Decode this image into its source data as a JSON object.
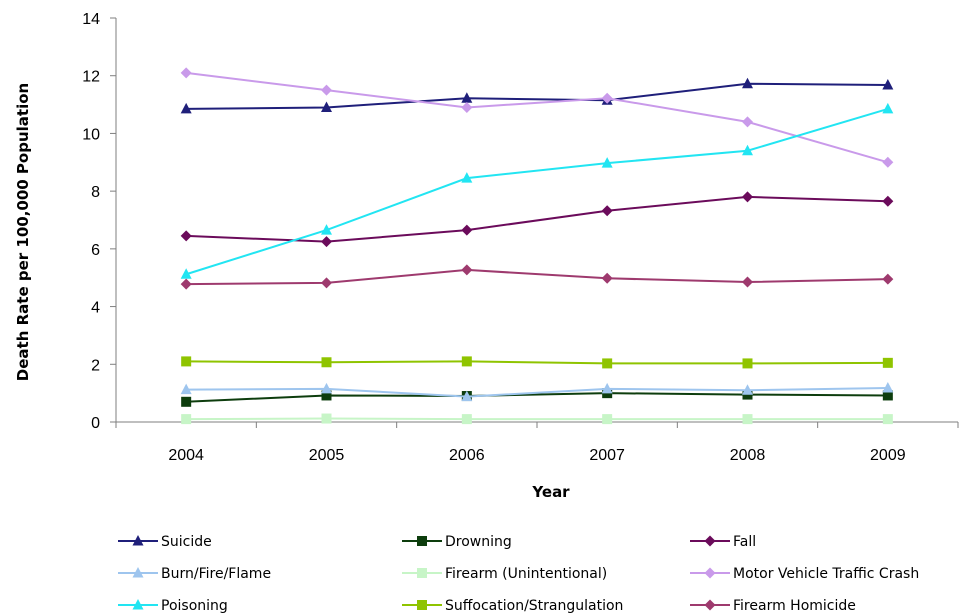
{
  "chart_data": {
    "type": "line",
    "title": "",
    "xlabel": "Year",
    "ylabel": "Death Rate per 100,000 Population",
    "x": [
      "2004",
      "2005",
      "2006",
      "2007",
      "2008",
      "2009"
    ],
    "yticks": [
      "0",
      "2",
      "4",
      "6",
      "8",
      "10",
      "12",
      "14"
    ],
    "ylim": [
      0,
      14
    ],
    "grid": false,
    "legend_position": "bottom",
    "series": [
      {
        "name": "Suicide",
        "color": "#1f1f7a",
        "marker": "triangle",
        "values": [
          10.85,
          10.9,
          11.22,
          11.15,
          11.72,
          11.68
        ]
      },
      {
        "name": "Drowning",
        "color": "#0d3d0d",
        "marker": "square",
        "values": [
          0.7,
          0.92,
          0.9,
          1.0,
          0.95,
          0.92
        ]
      },
      {
        "name": "Fall",
        "color": "#6b0b5b",
        "marker": "diamond",
        "values": [
          6.45,
          6.25,
          6.65,
          7.32,
          7.8,
          7.65
        ]
      },
      {
        "name": "Burn/Fire/Flame",
        "color": "#9ec5ee",
        "marker": "triangle",
        "values": [
          1.12,
          1.15,
          0.88,
          1.15,
          1.1,
          1.18
        ]
      },
      {
        "name": "Firearm (Unintentional)",
        "color": "#c7f5c7",
        "marker": "square",
        "values": [
          0.1,
          0.12,
          0.1,
          0.1,
          0.1,
          0.1
        ]
      },
      {
        "name": "Motor Vehicle Traffic Crash",
        "color": "#c99aea",
        "marker": "diamond",
        "values": [
          12.1,
          11.5,
          10.9,
          11.22,
          10.4,
          9.0
        ]
      },
      {
        "name": "Poisoning",
        "color": "#22e5f2",
        "marker": "triangle",
        "values": [
          5.12,
          6.65,
          8.45,
          8.97,
          9.4,
          10.85
        ]
      },
      {
        "name": "Suffocation/Strangulation",
        "color": "#8fc400",
        "marker": "square",
        "values": [
          2.1,
          2.07,
          2.1,
          2.03,
          2.03,
          2.05
        ]
      },
      {
        "name": "Firearm Homicide",
        "color": "#9e3a6e",
        "marker": "diamond",
        "values": [
          4.78,
          4.82,
          5.27,
          4.98,
          4.85,
          4.95
        ]
      }
    ]
  }
}
